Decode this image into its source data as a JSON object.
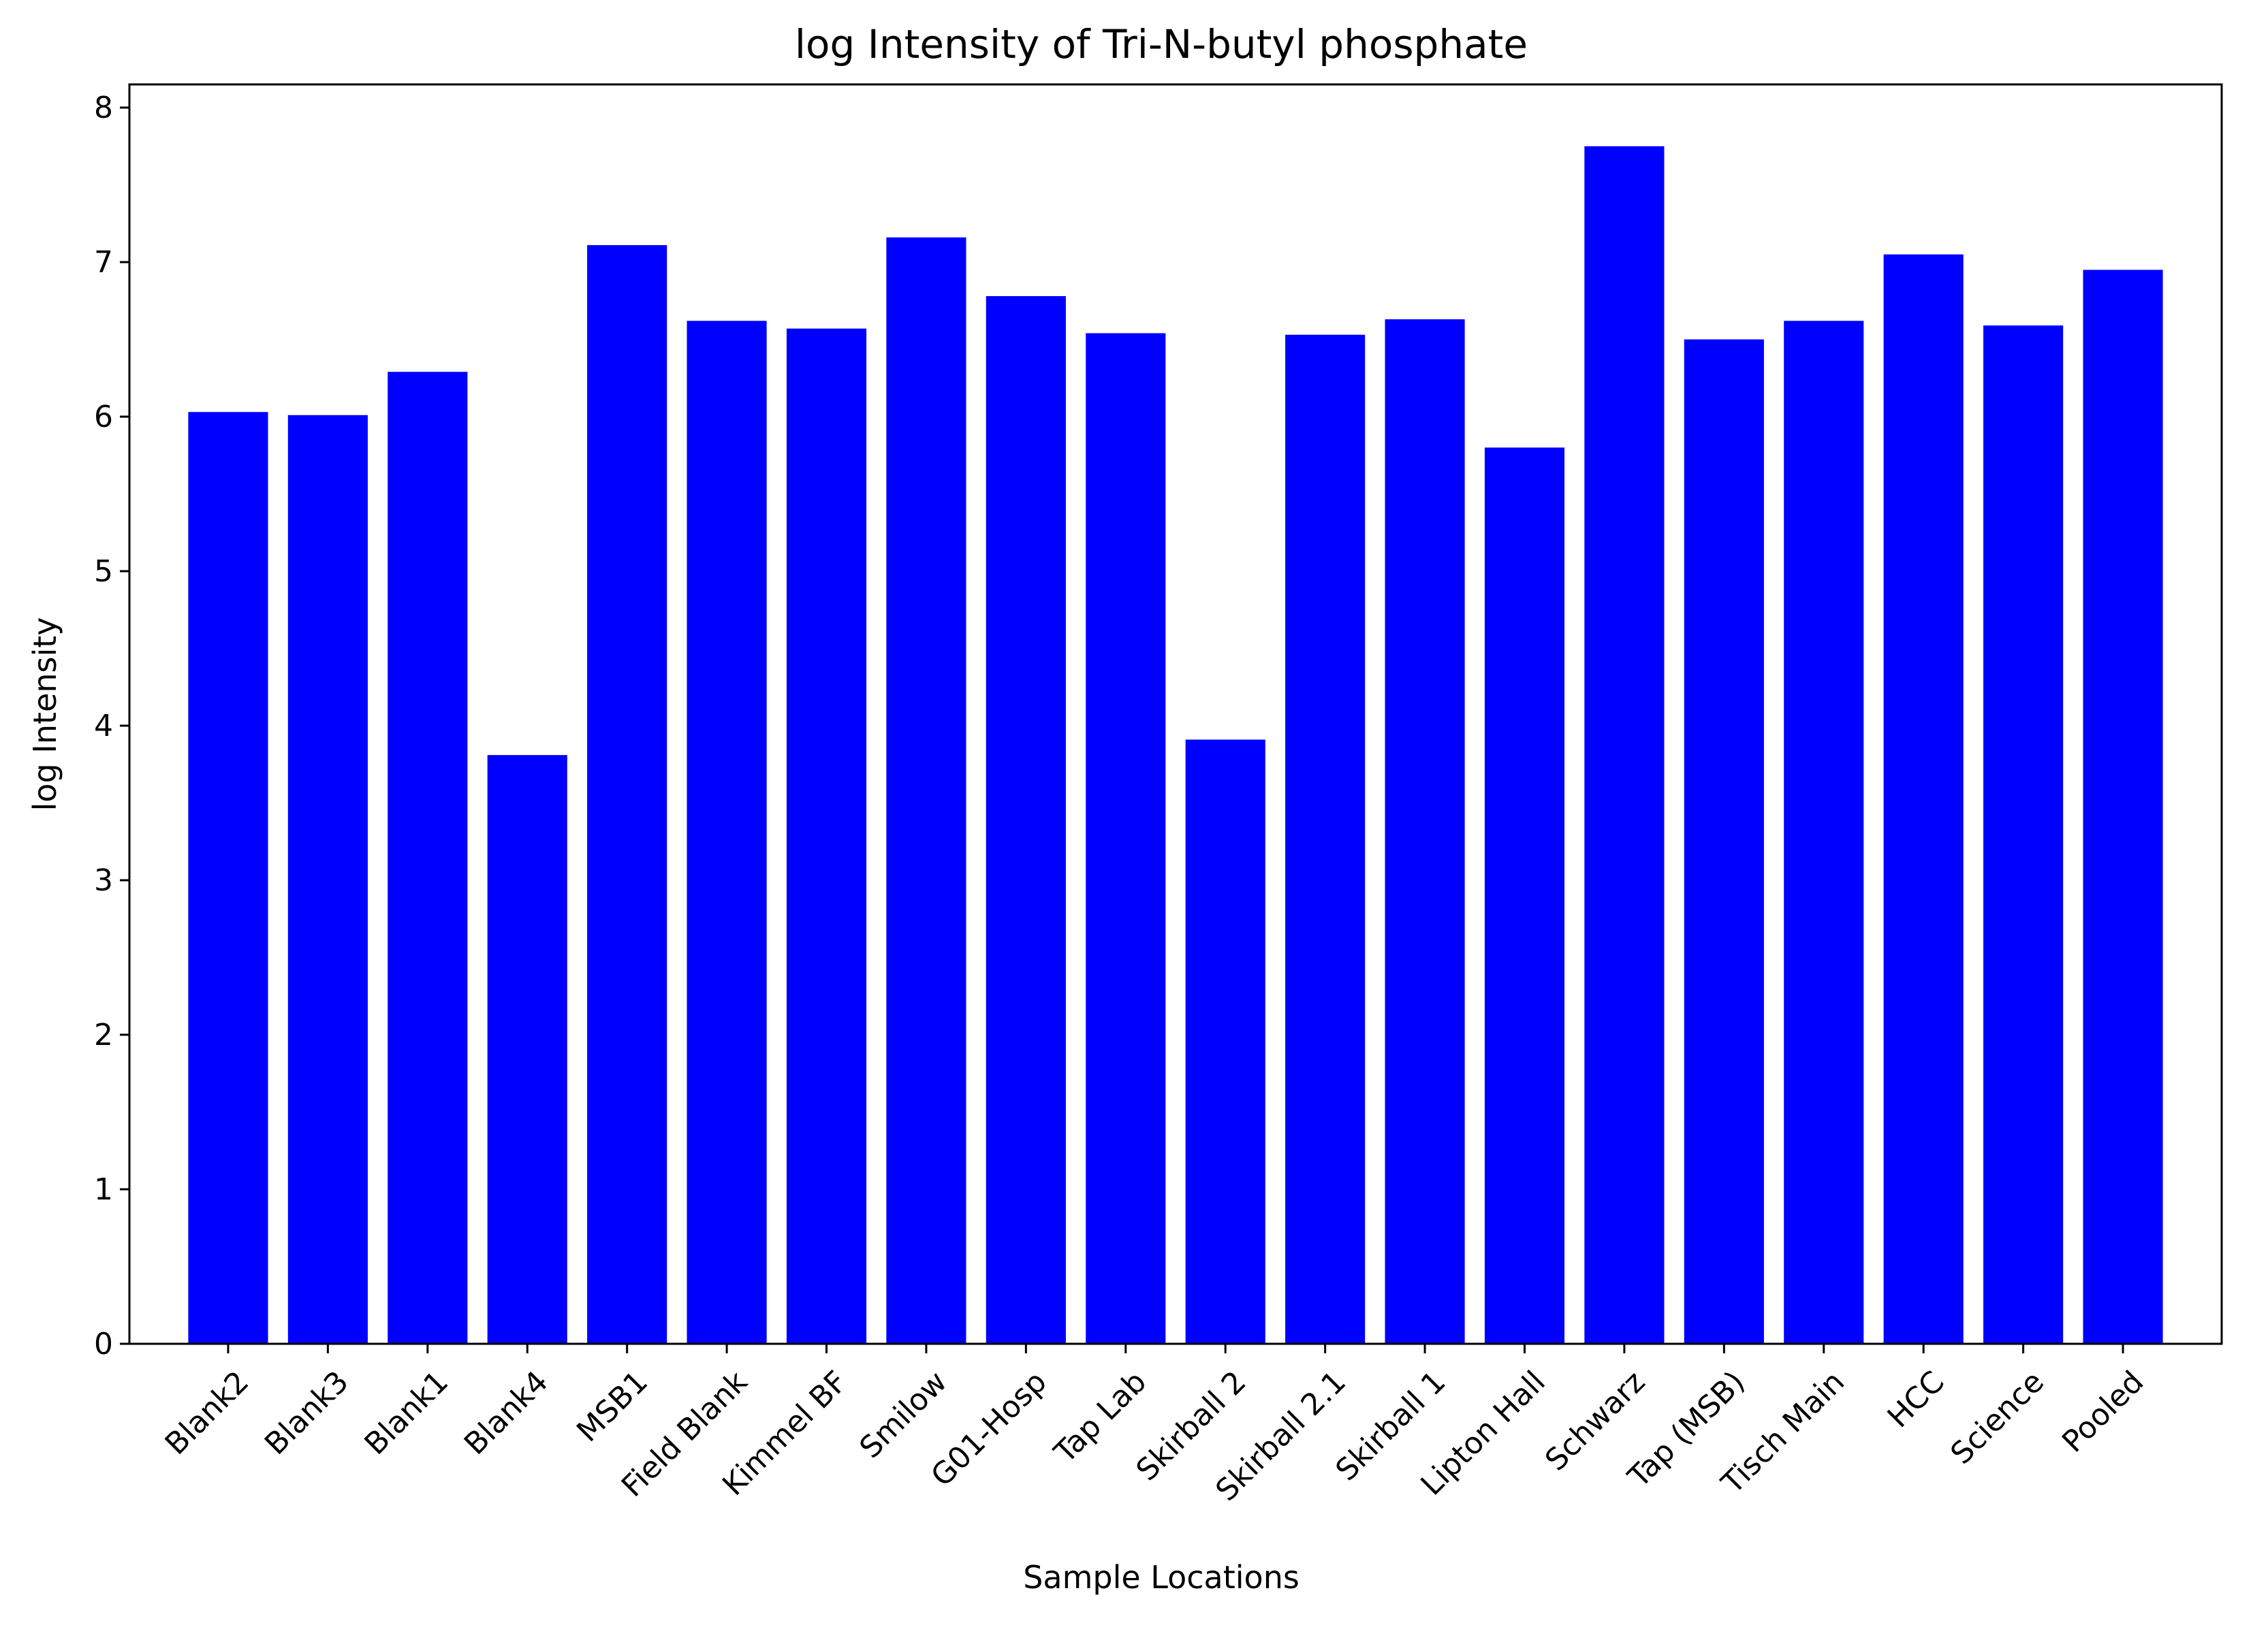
{
  "chart_data": {
    "type": "bar",
    "title": "log Intensity of Tri-N-butyl phosphate",
    "xlabel": "Sample Locations",
    "ylabel": "log Intensity",
    "ylim": [
      0,
      8.15
    ],
    "yticks": [
      0,
      1,
      2,
      3,
      4,
      5,
      6,
      7,
      8
    ],
    "grid": false,
    "bar_color": "#0000ff",
    "categories": [
      "Blank2",
      "Blank3",
      "Blank1",
      "Blank4",
      "MSB1",
      "Field Blank",
      "Kimmel BF",
      "Smilow",
      "G01-Hosp",
      "Tap Lab",
      "Skirball 2",
      "Skirball 2.1",
      "Skirball 1",
      "Lipton Hall",
      "Schwarz",
      "Tap (MSB)",
      "Tisch Main",
      "HCC",
      "Science",
      "Pooled"
    ],
    "values": [
      6.03,
      6.01,
      6.29,
      3.81,
      7.11,
      6.62,
      6.57,
      7.16,
      6.78,
      6.54,
      3.91,
      6.53,
      6.63,
      5.8,
      7.75,
      6.5,
      6.62,
      7.05,
      6.59,
      6.95
    ]
  }
}
